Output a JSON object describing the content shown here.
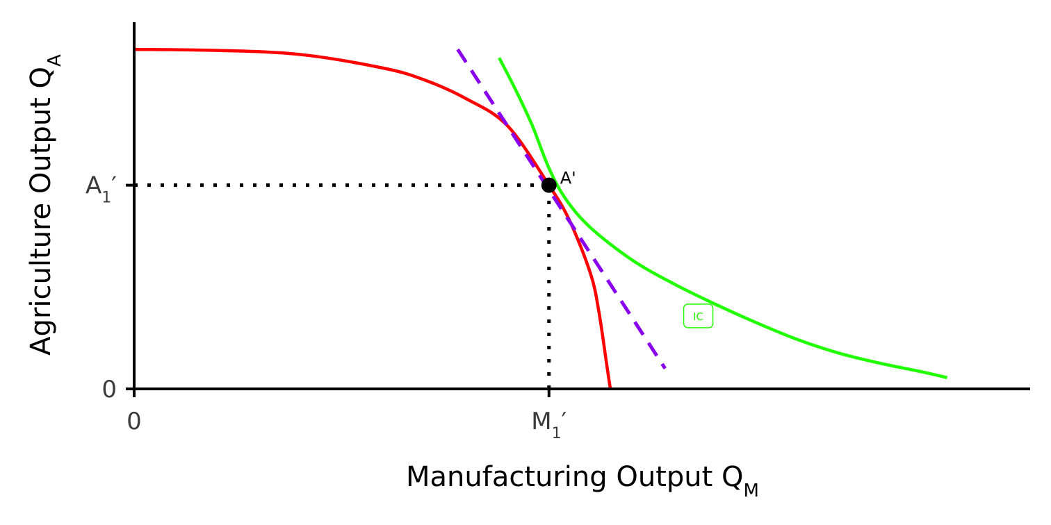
{
  "chart_data": {
    "type": "line",
    "xlabel": {
      "text": "Manufacturing Output Q",
      "sub": "M"
    },
    "ylabel": {
      "text": "Agriculture Output Q",
      "sub": "A"
    },
    "xlim": [
      0,
      10.8
    ],
    "ylim": [
      0,
      10.8
    ],
    "grid": false,
    "x_ticks": [
      {
        "value": 0,
        "label": "0"
      },
      {
        "value": 5,
        "base": "M",
        "sub": "1",
        "prime": "′"
      }
    ],
    "y_ticks": [
      {
        "value": 0,
        "label": "0"
      },
      {
        "value": 6,
        "base": "A",
        "sub": "1",
        "prime": "′"
      }
    ],
    "series": [
      {
        "role": "ppf",
        "color": "#ff0000",
        "x": [
          0,
          1,
          2,
          3,
          3.5,
          4,
          4.5,
          5,
          5.25,
          5.5,
          5.6,
          5.7,
          5.74
        ],
        "y": [
          10,
          9.97,
          9.85,
          9.45,
          9.1,
          8.55,
          7.75,
          6.0,
          4.95,
          3.4,
          2.3,
          0.65,
          0
        ]
      },
      {
        "role": "indifference_curve",
        "name": "IC",
        "color": "#22ff00",
        "x": [
          4.4,
          4.6,
          4.8,
          5.0,
          5.2,
          5.5,
          6.0,
          6.5,
          7.0,
          7.5,
          8.0,
          8.5,
          9.0,
          9.5,
          9.8
        ],
        "y": [
          9.75,
          8.8,
          7.75,
          6.5,
          5.6,
          4.75,
          3.8,
          3.1,
          2.5,
          1.95,
          1.45,
          1.05,
          0.75,
          0.5,
          0.33
        ],
        "label_at": [
          6.8,
          2.15
        ]
      },
      {
        "role": "tangent",
        "color": "#8800ee",
        "style": "dashed",
        "x": [
          3.9,
          6.4
        ],
        "y": [
          10.0,
          0.6
        ]
      }
    ],
    "guides": [
      {
        "from": [
          0,
          6
        ],
        "to": [
          5,
          6
        ],
        "style": "dotted",
        "color": "#000000"
      },
      {
        "from": [
          5,
          0
        ],
        "to": [
          5,
          6
        ],
        "style": "dotted",
        "color": "#000000"
      }
    ],
    "points": [
      {
        "x": 5,
        "y": 6,
        "label": "A'",
        "color": "#000000"
      }
    ]
  }
}
